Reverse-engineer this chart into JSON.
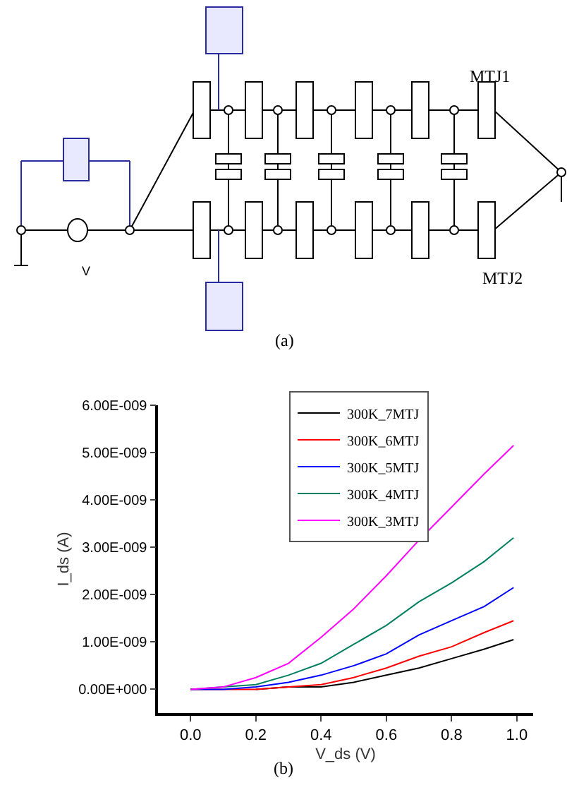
{
  "chart_data": {
    "type": "line",
    "xlabel": "V_ds (V)",
    "ylabel": "I_ds (A)",
    "annotations": [
      "MTJ1",
      "MTJ2",
      "V",
      "(a)",
      "(b)"
    ],
    "x": [
      0,
      0.1,
      0.2,
      0.3,
      0.4,
      0.5,
      0.6,
      0.7,
      0.8,
      0.9,
      0.99
    ],
    "series": [
      {
        "name": "300K_7MTJ",
        "color": "#000000",
        "values": [
          null,
          null,
          0,
          5e-11,
          5e-11,
          1.5e-10,
          3e-10,
          4.5e-10,
          6.5e-10,
          8.5e-10,
          1.05e-09
        ]
      },
      {
        "name": "300K_6MTJ",
        "color": "#ff0000",
        "values": [
          0,
          0,
          0,
          5e-11,
          1e-10,
          2.5e-10,
          4.5e-10,
          7e-10,
          9e-10,
          1.2e-09,
          1.45e-09
        ]
      },
      {
        "name": "300K_5MTJ",
        "color": "#0000ff",
        "values": [
          0,
          0,
          5e-11,
          1.5e-10,
          3e-10,
          5e-10,
          7.5e-10,
          1.15e-09,
          1.45e-09,
          1.75e-09,
          2.15e-09
        ]
      },
      {
        "name": "300K_4MTJ",
        "color": "#008060",
        "values": [
          0,
          5e-11,
          1e-10,
          3e-10,
          5.5e-10,
          9.5e-10,
          1.35e-09,
          1.85e-09,
          2.25e-09,
          2.7e-09,
          3.2e-09
        ]
      },
      {
        "name": "300K_3MTJ",
        "color": "#ff00ff",
        "values": [
          0,
          5e-11,
          2.5e-10,
          5.5e-10,
          1.1e-09,
          1.7e-09,
          2.4e-09,
          3.15e-09,
          3.85e-09,
          4.55e-09,
          5.15e-09
        ]
      }
    ],
    "xlim": [
      -0.1,
      1.05
    ],
    "xticks": [
      {
        "value": 0,
        "label": "0.0"
      },
      0.2,
      0.4,
      0.6,
      0.8,
      {
        "value": 1,
        "label": "1.0"
      }
    ],
    "ylim": [
      -5e-10,
      6e-09
    ],
    "yticks": [
      {
        "value": 0,
        "label": "0.00E+000"
      },
      {
        "value": 1e-09,
        "label": "1.00E-009"
      },
      {
        "value": 2e-09,
        "label": "2.00E-009"
      },
      {
        "value": 3e-09,
        "label": "3.00E-009"
      },
      {
        "value": 4e-09,
        "label": "4.00E-009"
      },
      {
        "value": 5e-09,
        "label": "5.00E-009"
      },
      {
        "value": 6e-09,
        "label": "6.00E-009"
      }
    ],
    "legend": "top",
    "marker": "none",
    "line_style": "solid"
  }
}
